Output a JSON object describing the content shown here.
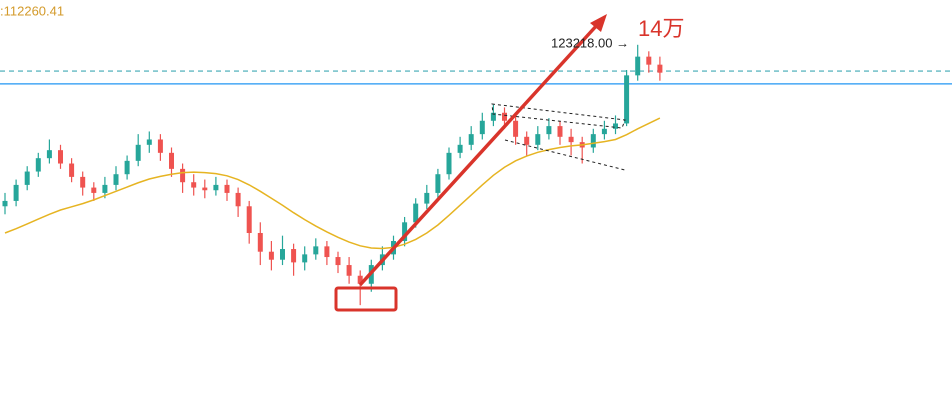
{
  "chart_data": {
    "type": "candlestick",
    "readout": ":112260.41",
    "annotations": [
      "123218.00 →",
      "14万"
    ],
    "ylim": [
      56000,
      131600
    ],
    "up_color": "#26a69a",
    "down_color": "#ef5350",
    "ohlc": [
      [
        93000,
        95500,
        91500,
        94000
      ],
      [
        94000,
        98000,
        93000,
        97000
      ],
      [
        97000,
        100500,
        96000,
        99500
      ],
      [
        99500,
        103000,
        98500,
        102000
      ],
      [
        102000,
        105500,
        101000,
        103500
      ],
      [
        103500,
        104500,
        100000,
        101000
      ],
      [
        101000,
        102000,
        97500,
        98500
      ],
      [
        98500,
        99500,
        95000,
        96500
      ],
      [
        96500,
        97500,
        94000,
        95500
      ],
      [
        95500,
        98500,
        94500,
        97000
      ],
      [
        97000,
        100500,
        96000,
        99000
      ],
      [
        99000,
        102500,
        98000,
        101500
      ],
      [
        101500,
        106500,
        100500,
        104500
      ],
      [
        104500,
        107000,
        103000,
        105500
      ],
      [
        105500,
        106500,
        101500,
        103000
      ],
      [
        103000,
        104000,
        98500,
        100000
      ],
      [
        100000,
        101000,
        95500,
        97500
      ],
      [
        97500,
        99000,
        95000,
        96500
      ],
      [
        96500,
        98000,
        94500,
        96000
      ],
      [
        96000,
        98500,
        95000,
        97000
      ],
      [
        97000,
        98000,
        94000,
        95500
      ],
      [
        95500,
        96500,
        91000,
        93000
      ],
      [
        93000,
        94000,
        86000,
        88000
      ],
      [
        88000,
        90000,
        82000,
        84500
      ],
      [
        84500,
        86500,
        81000,
        83000
      ],
      [
        83000,
        87500,
        82000,
        85000
      ],
      [
        85000,
        86000,
        80000,
        82500
      ],
      [
        82500,
        85500,
        81000,
        84000
      ],
      [
        84000,
        87000,
        83000,
        85500
      ],
      [
        85500,
        86500,
        82000,
        83500
      ],
      [
        83500,
        84500,
        80500,
        82000
      ],
      [
        82000,
        83500,
        78500,
        80000
      ],
      [
        80000,
        81000,
        74500,
        78500
      ],
      [
        78500,
        83000,
        77000,
        82000
      ],
      [
        82000,
        85500,
        81000,
        84000
      ],
      [
        84000,
        87500,
        83000,
        86500
      ],
      [
        86500,
        91000,
        85500,
        90000
      ],
      [
        90000,
        94500,
        89000,
        93500
      ],
      [
        93500,
        97000,
        92500,
        95500
      ],
      [
        95500,
        100000,
        94500,
        99000
      ],
      [
        99000,
        104000,
        98000,
        103000
      ],
      [
        103000,
        106000,
        102000,
        104500
      ],
      [
        104500,
        108000,
        103500,
        106500
      ],
      [
        106500,
        110500,
        105500,
        109000
      ],
      [
        109000,
        112000,
        108000,
        110500
      ],
      [
        110500,
        111500,
        107500,
        109000
      ],
      [
        109000,
        110000,
        104500,
        106000
      ],
      [
        106000,
        107000,
        102500,
        104500
      ],
      [
        104500,
        108000,
        103500,
        106500
      ],
      [
        106500,
        109500,
        105500,
        108000
      ],
      [
        108000,
        109000,
        104500,
        106000
      ],
      [
        106000,
        107500,
        102500,
        105000
      ],
      [
        105000,
        106000,
        101000,
        104000
      ],
      [
        104000,
        107500,
        103000,
        106500
      ],
      [
        106500,
        109000,
        105500,
        107500
      ],
      [
        107500,
        110000,
        106500,
        108500
      ],
      [
        108500,
        118500,
        108000,
        117500
      ],
      [
        117500,
        123218,
        116500,
        121000
      ],
      [
        121000,
        122000,
        118000,
        119500
      ],
      [
        119500,
        121000,
        116500,
        118000
      ]
    ],
    "ma": {
      "color": "#e6b422",
      "values": [
        88000,
        88800,
        89700,
        90600,
        91500,
        92300,
        92900,
        93500,
        94200,
        95000,
        95800,
        96600,
        97400,
        98100,
        98600,
        99000,
        99300,
        99400,
        99300,
        99100,
        98700,
        98000,
        97000,
        95800,
        94500,
        93200,
        91800,
        90500,
        89300,
        88200,
        87200,
        86300,
        85600,
        85200,
        85100,
        85300,
        85900,
        86800,
        88000,
        89500,
        91300,
        93200,
        95100,
        97000,
        98800,
        100300,
        101500,
        102400,
        103100,
        103600,
        104000,
        104300,
        104500,
        104800,
        105100,
        105500,
        106400,
        107500,
        108500,
        109500
      ]
    },
    "hlines": [
      {
        "value": 115900,
        "color": "#2196f3",
        "dashed": false
      },
      {
        "value": 118300,
        "color": "#3fa9b5",
        "dashed": true
      }
    ]
  }
}
